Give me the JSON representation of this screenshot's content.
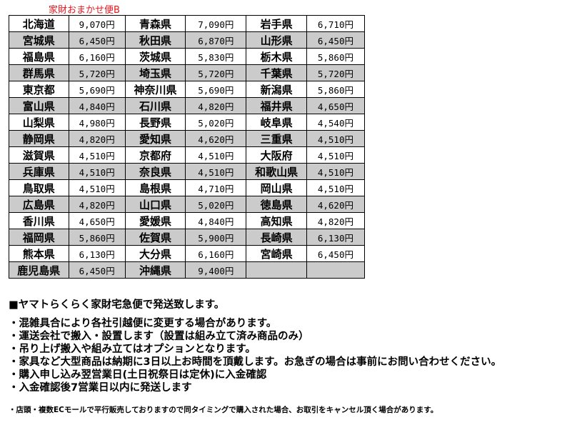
{
  "caption": "家財おまかせ便B",
  "rows": [
    [
      [
        "北海道",
        "9,070円"
      ],
      [
        "青森県",
        "7,090円"
      ],
      [
        "岩手県",
        "6,710円"
      ]
    ],
    [
      [
        "宮城県",
        "6,450円"
      ],
      [
        "秋田県",
        "6,870円"
      ],
      [
        "山形県",
        "6,450円"
      ]
    ],
    [
      [
        "福島県",
        "6,160円"
      ],
      [
        "茨城県",
        "5,830円"
      ],
      [
        "栃木県",
        "5,860円"
      ]
    ],
    [
      [
        "群馬県",
        "5,720円"
      ],
      [
        "埼玉県",
        "5,720円"
      ],
      [
        "千葉県",
        "5,720円"
      ]
    ],
    [
      [
        "東京都",
        "5,690円"
      ],
      [
        "神奈川県",
        "5,690円"
      ],
      [
        "新潟県",
        "5,860円"
      ]
    ],
    [
      [
        "富山県",
        "4,840円"
      ],
      [
        "石川県",
        "4,820円"
      ],
      [
        "福井県",
        "4,650円"
      ]
    ],
    [
      [
        "山梨県",
        "4,980円"
      ],
      [
        "長野県",
        "5,020円"
      ],
      [
        "岐阜県",
        "4,540円"
      ]
    ],
    [
      [
        "静岡県",
        "4,820円"
      ],
      [
        "愛知県",
        "4,620円"
      ],
      [
        "三重県",
        "4,510円"
      ]
    ],
    [
      [
        "滋賀県",
        "4,510円"
      ],
      [
        "京都府",
        "4,510円"
      ],
      [
        "大阪府",
        "4,510円"
      ]
    ],
    [
      [
        "兵庫県",
        "4,510円"
      ],
      [
        "奈良県",
        "4,510円"
      ],
      [
        "和歌山県",
        "4,510円"
      ]
    ],
    [
      [
        "鳥取県",
        "4,510円"
      ],
      [
        "島根県",
        "4,710円"
      ],
      [
        "岡山県",
        "4,510円"
      ]
    ],
    [
      [
        "広島県",
        "4,820円"
      ],
      [
        "山口県",
        "5,020円"
      ],
      [
        "徳島県",
        "4,620円"
      ]
    ],
    [
      [
        "香川県",
        "4,650円"
      ],
      [
        "愛媛県",
        "4,840円"
      ],
      [
        "高知県",
        "4,820円"
      ]
    ],
    [
      [
        "福岡県",
        "5,860円"
      ],
      [
        "佐賀県",
        "5,900円"
      ],
      [
        "長崎県",
        "6,130円"
      ]
    ],
    [
      [
        "熊本県",
        "6,130円"
      ],
      [
        "大分県",
        "6,160円"
      ],
      [
        "宮崎県",
        "6,450円"
      ]
    ],
    [
      [
        "鹿児島県",
        "6,450円"
      ],
      [
        "沖縄県",
        "9,400円"
      ],
      [
        "",
        ""
      ]
    ]
  ],
  "notes": {
    "heading": "■ヤマトらくらく家財宅急便で発送致します。",
    "bullets": [
      "・混雑具合により各社引越便に変更する場合があります。",
      "・運送会社で搬入・設置します（設置は組み立て済み商品のみ）",
      "・吊り上げ搬入や組み立てはオプションとなります。",
      "・家具など大型商品は納期に3日以上お時間を頂戴します。お急ぎの場合は事前にお問い合わせください。",
      "・購入申し込み翌営業日(土日祝祭日は定休)に入金確認",
      "・入金確認後7営業日以内に発送します"
    ],
    "footnote": "・店頭・複数ECモールで平行販売しておりますので同タイミングで購入された場合、お取引をキャンセル頂く場合があります。"
  },
  "colors": {
    "caption": "#e8141b",
    "row_shade": "#cbcbcb"
  }
}
